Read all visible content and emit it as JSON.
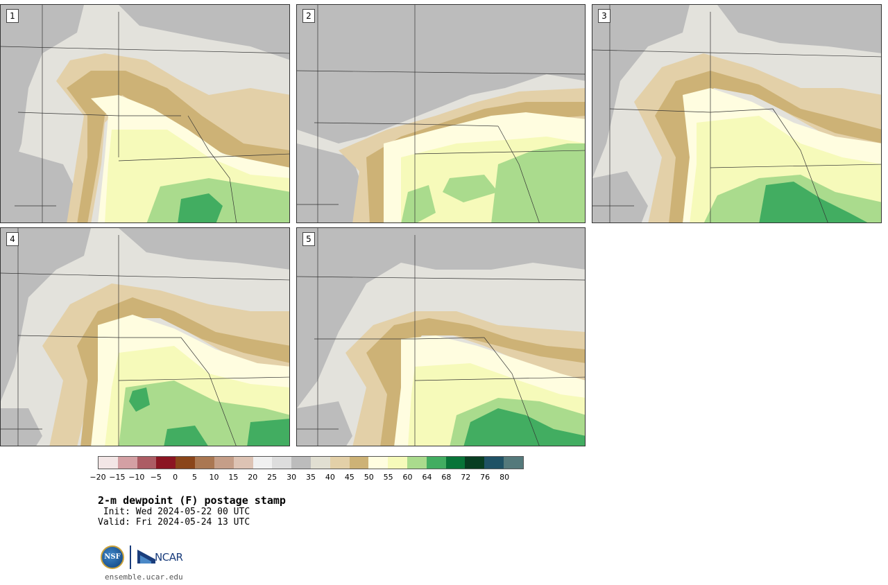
{
  "panels": [
    {
      "label": "1"
    },
    {
      "label": "2"
    },
    {
      "label": "3"
    },
    {
      "label": "4"
    },
    {
      "label": "5"
    }
  ],
  "colorbar": {
    "colors": [
      "#f3e6e6",
      "#d4a0a4",
      "#ac5c64",
      "#8b1522",
      "#8a451a",
      "#aa7752",
      "#c59e88",
      "#ddc3b4",
      "#f0f0f0",
      "#dddddd",
      "#bcbcbc",
      "#e1dfd2",
      "#e3d0a8",
      "#cdb276",
      "#fffde0",
      "#f6faba",
      "#aadb8d",
      "#42ad61",
      "#087438",
      "#083e22",
      "#1f5265",
      "#54797b"
    ],
    "ticks": [
      "−20",
      "−15",
      "−10",
      "−5",
      "0",
      "5",
      "10",
      "15",
      "20",
      "25",
      "30",
      "35",
      "40",
      "45",
      "50",
      "55",
      "60",
      "64",
      "68",
      "72",
      "76",
      "80"
    ]
  },
  "title": "2-m dewpoint (F) postage stamp",
  "init": " Init: Wed 2024-05-22 00 UTC",
  "valid": "Valid: Fri 2024-05-24 13 UTC",
  "logo": {
    "nsf_text": "NSF",
    "ncar_text": "NCAR"
  },
  "website": "ensemble.ucar.edu"
}
